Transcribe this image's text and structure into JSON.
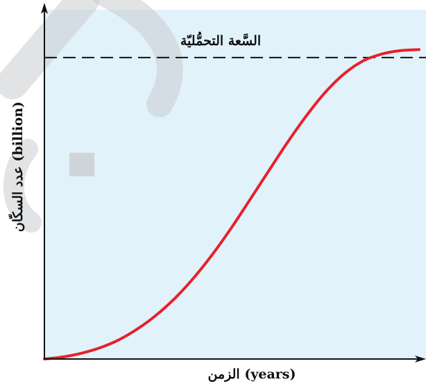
{
  "chart_data": {
    "type": "line",
    "title": "",
    "xlabel": "الزمن (years)",
    "ylabel": "عدد السكّان (billion)",
    "grid": false,
    "legend": "none",
    "annotations": [
      {
        "text": "السَّعة التحمُّليّة",
        "y": 0.87,
        "style": "dashed-line",
        "color": "#111111"
      }
    ],
    "xlim": [
      0,
      1
    ],
    "ylim": [
      0,
      1
    ],
    "series": [
      {
        "color": "#e8202a",
        "x": [
          0,
          0.05,
          0.1,
          0.15,
          0.2,
          0.25,
          0.3,
          0.35,
          0.4,
          0.45,
          0.5,
          0.55,
          0.6,
          0.65,
          0.7,
          0.75,
          0.8,
          0.85,
          0.9,
          0.95,
          1
        ],
        "y": [
          0,
          0.006,
          0.017,
          0.033,
          0.056,
          0.088,
          0.128,
          0.177,
          0.236,
          0.304,
          0.38,
          0.462,
          0.545,
          0.627,
          0.703,
          0.77,
          0.823,
          0.86,
          0.88,
          0.89,
          0.893
        ]
      }
    ],
    "colors": {
      "background": "#e2f2fb",
      "axis": "#111111",
      "curve": "#e8202a"
    }
  }
}
